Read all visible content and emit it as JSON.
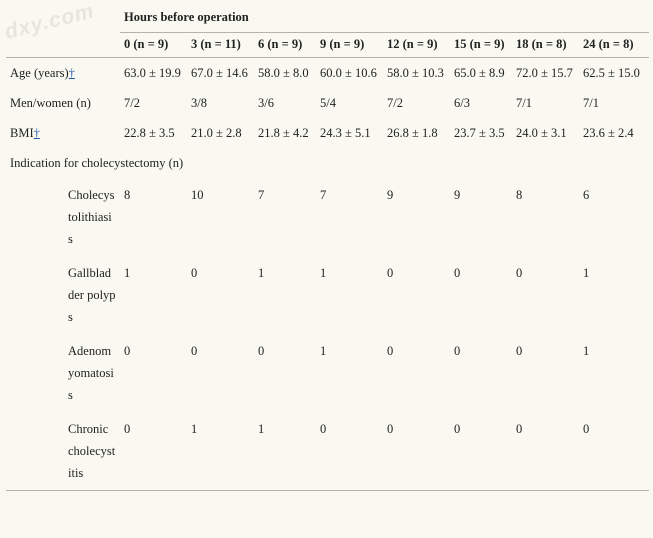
{
  "watermark": "dxy.com",
  "header": {
    "group_title": "Hours before operation",
    "columns": [
      "0 (n = 9)",
      "3 (n = 11)",
      "6 (n = 9)",
      "9 (n = 9)",
      "12 (n = 9)",
      "15 (n = 9)",
      "18 (n = 8)",
      "24 (n = 8)"
    ]
  },
  "rows": {
    "age": {
      "label": "Age (years)",
      "mark": "†",
      "values": [
        "63.0 ± 19.9",
        "67.0 ± 14.6",
        "58.0 ± 8.0",
        "60.0 ± 10.6",
        "58.0 ± 10.3",
        "65.0 ± 8.9",
        "72.0 ± 15.7",
        "62.5 ± 15.0"
      ]
    },
    "sex": {
      "label": "Men/women (n)",
      "values": [
        "7/2",
        "3/8",
        "3/6",
        "5/4",
        "7/2",
        "6/3",
        "7/1",
        "7/1"
      ]
    },
    "bmi": {
      "label": "BMI",
      "mark": "†",
      "values": [
        "22.8 ± 3.5",
        "21.0 ± 2.8",
        "21.8 ± 4.2",
        "24.3 ± 5.1",
        "26.8 ± 1.8",
        "23.7 ± 3.5",
        "24.0 ± 3.1",
        "23.6 ± 2.4"
      ]
    },
    "indication": {
      "label": "Indication for cholecystectomy (n)"
    },
    "cholecystolithiasis": {
      "label": "Cholecystolithiasis",
      "values": [
        "8",
        "10",
        "7",
        "7",
        "9",
        "9",
        "8",
        "6"
      ]
    },
    "polyps": {
      "label": "Gallbladder polyps",
      "values": [
        "1",
        "0",
        "1",
        "1",
        "0",
        "0",
        "0",
        "1"
      ]
    },
    "adenomyomatosis": {
      "label": "Adenomyomatosis",
      "values": [
        "0",
        "0",
        "0",
        "1",
        "0",
        "0",
        "0",
        "1"
      ]
    },
    "cholecystitis": {
      "label": "Chronic cholecystitis",
      "values": [
        "0",
        "1",
        "1",
        "0",
        "0",
        "0",
        "0",
        "0"
      ]
    }
  }
}
